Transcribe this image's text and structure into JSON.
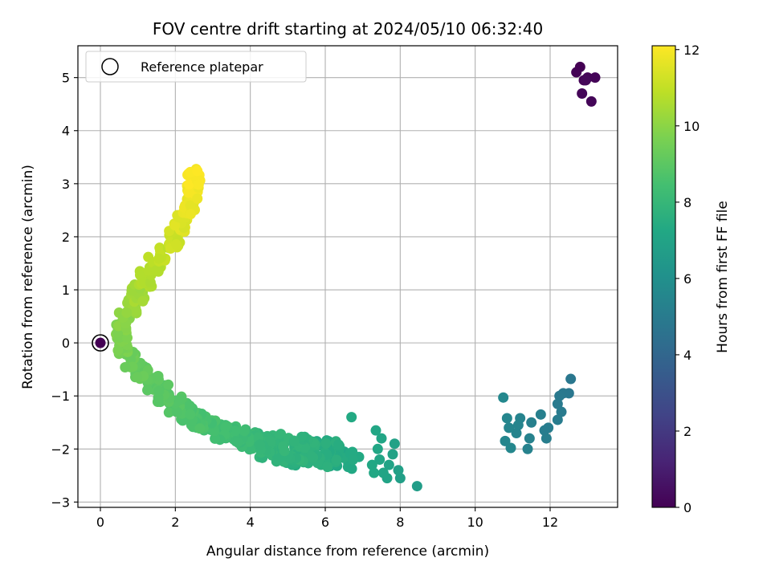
{
  "chart_data": {
    "type": "scatter",
    "title": "FOV centre drift starting at 2024/05/10 06:32:40",
    "xlabel": "Angular distance from reference (arcmin)",
    "ylabel": "Rotation from reference (arcmin)",
    "xlim": [
      -0.6,
      13.8
    ],
    "ylim": [
      -3.1,
      5.6
    ],
    "xticks": [
      0,
      2,
      4,
      6,
      8,
      10,
      12
    ],
    "yticks": [
      -3,
      -2,
      -1,
      0,
      1,
      2,
      3,
      4,
      5
    ],
    "grid": true,
    "legend": {
      "position": "upper-left",
      "entries": [
        "Reference platepar"
      ]
    },
    "reference_point": {
      "x": 0,
      "y": 0,
      "label": "Reference platepar"
    },
    "colorbar": {
      "label": "Hours from first FF file",
      "range": [
        0,
        12.1
      ],
      "ticks": [
        0,
        2,
        4,
        6,
        8,
        10,
        12
      ],
      "colormap": "viridis"
    },
    "series": [
      {
        "color_value_unit": "hours",
        "points": [
          {
            "x": 0.0,
            "y": 0.0,
            "c": 0.0
          },
          {
            "x": 12.8,
            "y": 5.2,
            "c": 0.0
          },
          {
            "x": 12.7,
            "y": 5.1,
            "c": 0.05
          },
          {
            "x": 12.9,
            "y": 4.95,
            "c": 0.05
          },
          {
            "x": 13.0,
            "y": 5.0,
            "c": 0.1
          },
          {
            "x": 13.2,
            "y": 5.0,
            "c": 0.1
          },
          {
            "x": 12.85,
            "y": 4.7,
            "c": 0.15
          },
          {
            "x": 13.1,
            "y": 4.55,
            "c": 0.15
          },
          {
            "x": 12.95,
            "y": 4.95,
            "c": 0.2
          },
          {
            "x": 12.55,
            "y": -0.68,
            "c": 4.8
          },
          {
            "x": 12.5,
            "y": -0.95,
            "c": 4.8
          },
          {
            "x": 12.35,
            "y": -0.95,
            "c": 4.85
          },
          {
            "x": 12.25,
            "y": -1.0,
            "c": 4.9
          },
          {
            "x": 12.2,
            "y": -1.15,
            "c": 4.95
          },
          {
            "x": 12.3,
            "y": -1.3,
            "c": 5.0
          },
          {
            "x": 12.2,
            "y": -1.45,
            "c": 5.05
          },
          {
            "x": 11.95,
            "y": -1.6,
            "c": 5.1
          },
          {
            "x": 11.85,
            "y": -1.65,
            "c": 5.1
          },
          {
            "x": 11.9,
            "y": -1.8,
            "c": 5.15
          },
          {
            "x": 11.75,
            "y": -1.35,
            "c": 5.2
          },
          {
            "x": 11.5,
            "y": -1.5,
            "c": 5.25
          },
          {
            "x": 11.45,
            "y": -1.8,
            "c": 5.3
          },
          {
            "x": 11.4,
            "y": -2.0,
            "c": 5.3
          },
          {
            "x": 11.2,
            "y": -1.42,
            "c": 5.35
          },
          {
            "x": 11.15,
            "y": -1.55,
            "c": 5.4
          },
          {
            "x": 11.1,
            "y": -1.7,
            "c": 5.4
          },
          {
            "x": 10.9,
            "y": -1.6,
            "c": 5.45
          },
          {
            "x": 10.85,
            "y": -1.42,
            "c": 5.5
          },
          {
            "x": 10.8,
            "y": -1.85,
            "c": 5.5
          },
          {
            "x": 10.95,
            "y": -1.98,
            "c": 5.55
          },
          {
            "x": 10.75,
            "y": -1.03,
            "c": 5.6
          },
          {
            "x": 8.45,
            "y": -2.7,
            "c": 6.7
          },
          {
            "x": 8.0,
            "y": -2.55,
            "c": 6.8
          },
          {
            "x": 7.95,
            "y": -2.4,
            "c": 6.85
          },
          {
            "x": 7.85,
            "y": -1.9,
            "c": 6.9
          },
          {
            "x": 7.8,
            "y": -2.1,
            "c": 6.95
          },
          {
            "x": 7.7,
            "y": -2.3,
            "c": 7.0
          },
          {
            "x": 7.65,
            "y": -2.55,
            "c": 7.0
          },
          {
            "x": 7.55,
            "y": -2.45,
            "c": 7.05
          },
          {
            "x": 7.5,
            "y": -1.8,
            "c": 7.1
          },
          {
            "x": 7.45,
            "y": -2.2,
            "c": 7.1
          },
          {
            "x": 7.4,
            "y": -2.0,
            "c": 7.15
          },
          {
            "x": 7.35,
            "y": -1.65,
            "c": 7.15
          },
          {
            "x": 7.3,
            "y": -2.45,
            "c": 7.2
          },
          {
            "x": 7.25,
            "y": -2.3,
            "c": 7.2
          },
          {
            "x": 6.7,
            "y": -1.4,
            "c": 7.3
          },
          {
            "x": 6.9,
            "y": -2.15,
            "c": 7.3
          }
        ]
      }
    ]
  }
}
